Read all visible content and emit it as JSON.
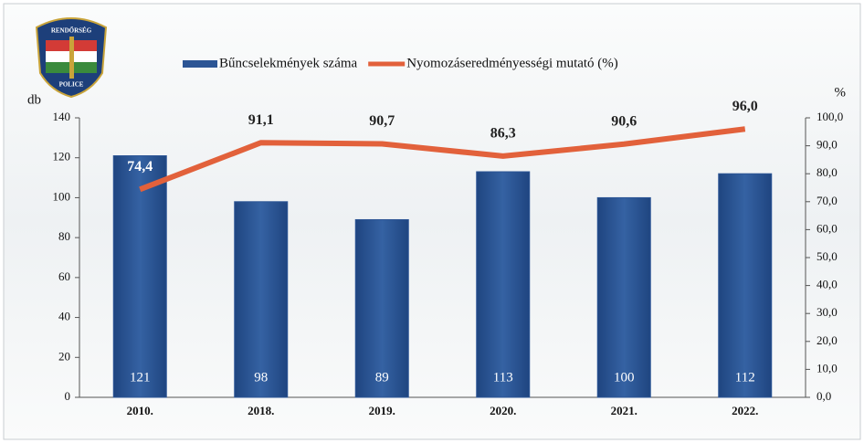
{
  "logo": {
    "top": "RENDŐRSÉG",
    "bottom": "POLICE"
  },
  "chart_data": {
    "type": "bar",
    "categories": [
      "2010.",
      "2018.",
      "2019.",
      "2020.",
      "2021.",
      "2022."
    ],
    "series": [
      {
        "name": "Bűncselekmények száma",
        "color": "#2c5595",
        "values": [
          121,
          98,
          89,
          113,
          100,
          112
        ]
      },
      {
        "name": "Nyomozáseredményességi mutató (%)",
        "color": "#e2613b",
        "type": "line",
        "axis": "y2",
        "values": [
          74.4,
          91.1,
          90.7,
          86.3,
          90.6,
          96.0
        ],
        "value_labels": [
          "74,4",
          "91,1",
          "90,7",
          "86,3",
          "90,6",
          "96,0"
        ]
      }
    ],
    "ylabel": "db",
    "y2label": "%",
    "ylim": [
      0,
      140
    ],
    "yticks": [
      0,
      20,
      40,
      60,
      80,
      100,
      120,
      140
    ],
    "y2lim": [
      0,
      100
    ],
    "y2ticks": [
      {
        "value": 0,
        "label": "0,0"
      },
      {
        "value": 10,
        "label": "10,0"
      },
      {
        "value": 20,
        "label": "20,0"
      },
      {
        "value": 30,
        "label": "30,0"
      },
      {
        "value": 40,
        "label": "40,0"
      },
      {
        "value": 50,
        "label": "50,0"
      },
      {
        "value": 60,
        "label": "60,0"
      },
      {
        "value": 70,
        "label": "70,0"
      },
      {
        "value": 80,
        "label": "80,0"
      },
      {
        "value": 90,
        "label": "90,0"
      },
      {
        "value": 100,
        "label": "100,0"
      }
    ],
    "grid": false
  }
}
